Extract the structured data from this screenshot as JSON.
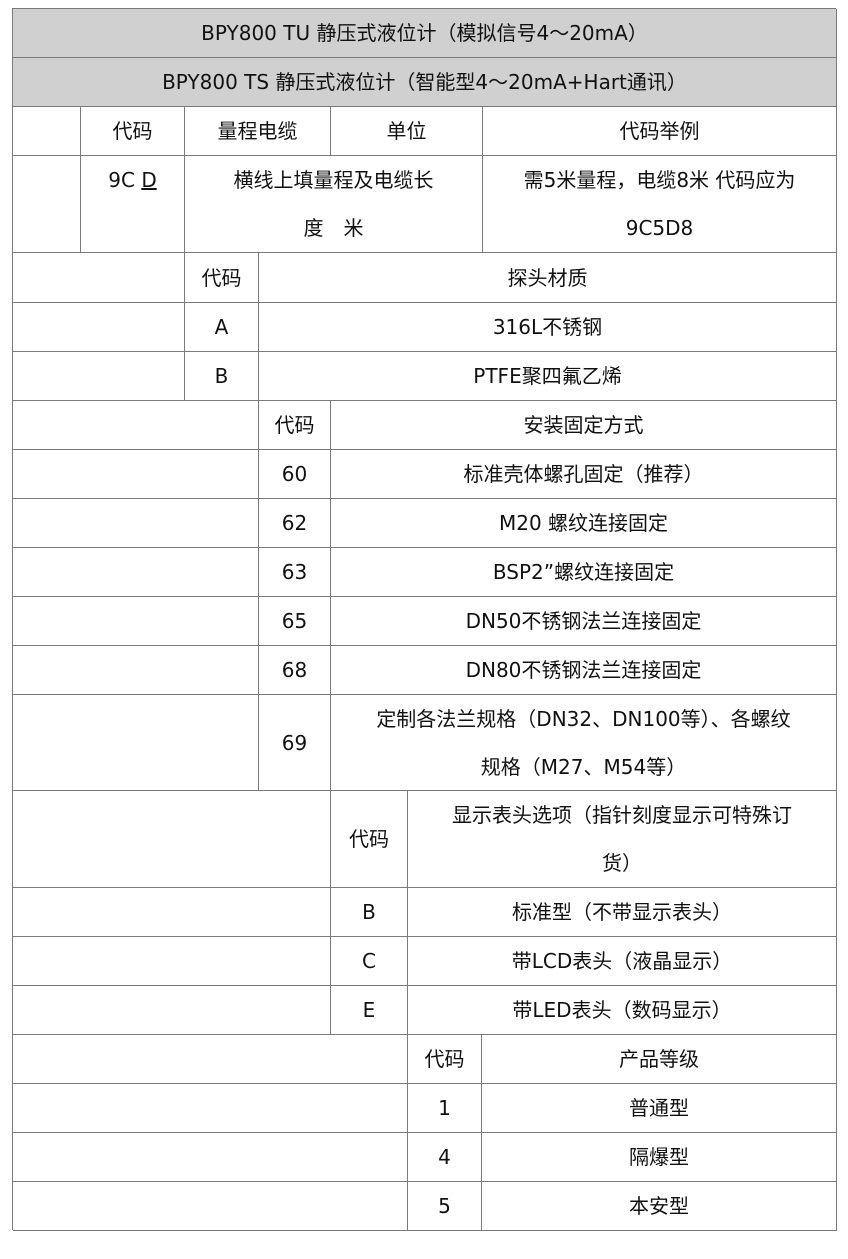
{
  "titles": {
    "tu": "BPY800 TU 静压式液位计（模拟信号4～20mA）",
    "ts": "BPY800 TS 静压式液位计（智能型4～20mA+Hart通讯）"
  },
  "range_section": {
    "headers": {
      "code": "代码",
      "range_cable": "量程电缆",
      "unit": "单位",
      "example": "代码举例"
    },
    "code_prefix": "9C",
    "code_variable": "D",
    "description": "横线上填量程及电缆长\n度　米",
    "example": "需5米量程，电缆8米 代码应为\n9C5D8"
  },
  "probe_section": {
    "headers": {
      "code": "代码",
      "name": "探头材质"
    },
    "rows": [
      {
        "code": "A",
        "name": "316L不锈钢"
      },
      {
        "code": "B",
        "name": "PTFE聚四氟乙烯"
      }
    ]
  },
  "mount_section": {
    "headers": {
      "code": "代码",
      "name": "安装固定方式"
    },
    "rows": [
      {
        "code": "60",
        "name": "标准壳体螺孔固定（推荐）"
      },
      {
        "code": "62",
        "name": "M20 螺纹连接固定"
      },
      {
        "code": "63",
        "name": "BSP2”螺纹连接固定"
      },
      {
        "code": "65",
        "name": "DN50不锈钢法兰连接固定"
      },
      {
        "code": "68",
        "name": "DN80不锈钢法兰连接固定"
      },
      {
        "code": "69",
        "name": "定制各法兰规格（DN32、DN100等）、各螺纹\n规格（M27、M54等）"
      }
    ]
  },
  "display_section": {
    "headers": {
      "code": "代码",
      "name": "显示表头选项（指针刻度显示可特殊订\n货）"
    },
    "rows": [
      {
        "code": "B",
        "name": "标准型（不带显示表头）"
      },
      {
        "code": "C",
        "name": "带LCD表头（液晶显示）"
      },
      {
        "code": "E",
        "name": "带LED表头（数码显示）"
      }
    ]
  },
  "grade_section": {
    "headers": {
      "code": "代码",
      "name": "产品等级"
    },
    "rows": [
      {
        "code": "1",
        "name": "普通型"
      },
      {
        "code": "4",
        "name": "隔爆型"
      },
      {
        "code": "5",
        "name": "本安型"
      }
    ]
  },
  "colors": {
    "header_bg": "#d0d0d0",
    "border": "#7a7a7a"
  }
}
